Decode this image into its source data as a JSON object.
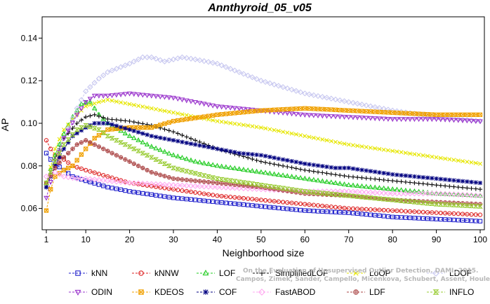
{
  "chart_data": {
    "type": "line",
    "title": "Annthyroid_05_v05",
    "xlabel": "Neighborhood size",
    "ylabel": "AP",
    "xlim": [
      1,
      100
    ],
    "ylim": [
      0.05,
      0.15
    ],
    "xticks": [
      1,
      10,
      20,
      30,
      40,
      50,
      60,
      70,
      80,
      90,
      100
    ],
    "yticks": [
      0.06,
      0.08,
      0.1,
      0.12,
      0.14
    ],
    "ytick_labels": [
      "0.06",
      "0.08",
      "0.10",
      "0.12",
      "0.14"
    ],
    "grid": false,
    "legend_position": "bottom",
    "watermark": [
      "On the Evaluation of Unsupervised Outlier Detection. DAMI, 2015.",
      "Campos, Zimek, Sander, Campello, Micenkova, Schubert, Assent, Houle"
    ],
    "series": [
      {
        "name": "kNN",
        "color": "#2222cc",
        "marker": "square",
        "points": [
          [
            1,
            0.086
          ],
          [
            2,
            0.083
          ],
          [
            3,
            0.081
          ],
          [
            5,
            0.078
          ],
          [
            7,
            0.075
          ],
          [
            10,
            0.073
          ],
          [
            15,
            0.07
          ],
          [
            20,
            0.068
          ],
          [
            30,
            0.065
          ],
          [
            40,
            0.063
          ],
          [
            50,
            0.061
          ],
          [
            60,
            0.059
          ],
          [
            70,
            0.058
          ],
          [
            80,
            0.056
          ],
          [
            90,
            0.055
          ],
          [
            100,
            0.054
          ]
        ]
      },
      {
        "name": "kNNW",
        "color": "#dd2222",
        "marker": "circle",
        "points": [
          [
            1,
            0.092
          ],
          [
            2,
            0.088
          ],
          [
            3,
            0.085
          ],
          [
            5,
            0.083
          ],
          [
            7,
            0.08
          ],
          [
            10,
            0.078
          ],
          [
            15,
            0.075
          ],
          [
            20,
            0.072
          ],
          [
            30,
            0.069
          ],
          [
            40,
            0.066
          ],
          [
            50,
            0.064
          ],
          [
            60,
            0.062
          ],
          [
            70,
            0.06
          ],
          [
            80,
            0.059
          ],
          [
            90,
            0.058
          ],
          [
            100,
            0.057
          ]
        ]
      },
      {
        "name": "LOF",
        "color": "#22cc22",
        "marker": "triangle",
        "points": [
          [
            1,
            0.072
          ],
          [
            3,
            0.085
          ],
          [
            5,
            0.095
          ],
          [
            7,
            0.103
          ],
          [
            9,
            0.109
          ],
          [
            11,
            0.11
          ],
          [
            13,
            0.104
          ],
          [
            15,
            0.1
          ],
          [
            20,
            0.094
          ],
          [
            25,
            0.089
          ],
          [
            30,
            0.085
          ],
          [
            35,
            0.082
          ],
          [
            40,
            0.08
          ],
          [
            50,
            0.077
          ],
          [
            60,
            0.074
          ],
          [
            70,
            0.071
          ],
          [
            80,
            0.069
          ],
          [
            90,
            0.067
          ],
          [
            100,
            0.066
          ]
        ]
      },
      {
        "name": "SimplifiedLOF",
        "color": "#111111",
        "marker": "plus",
        "points": [
          [
            1,
            0.07
          ],
          [
            3,
            0.083
          ],
          [
            5,
            0.093
          ],
          [
            8,
            0.1
          ],
          [
            10,
            0.103
          ],
          [
            12,
            0.104
          ],
          [
            15,
            0.102
          ],
          [
            20,
            0.101
          ],
          [
            25,
            0.099
          ],
          [
            30,
            0.096
          ],
          [
            35,
            0.092
          ],
          [
            40,
            0.088
          ],
          [
            45,
            0.085
          ],
          [
            50,
            0.082
          ],
          [
            60,
            0.078
          ],
          [
            70,
            0.075
          ],
          [
            80,
            0.073
          ],
          [
            90,
            0.071
          ],
          [
            100,
            0.069
          ]
        ]
      },
      {
        "name": "LoOP",
        "color": "#e6e600",
        "marker": "x",
        "points": [
          [
            1,
            0.071
          ],
          [
            3,
            0.088
          ],
          [
            5,
            0.097
          ],
          [
            8,
            0.104
          ],
          [
            10,
            0.108
          ],
          [
            13,
            0.11
          ],
          [
            15,
            0.111
          ],
          [
            20,
            0.109
          ],
          [
            25,
            0.107
          ],
          [
            30,
            0.105
          ],
          [
            40,
            0.101
          ],
          [
            50,
            0.098
          ],
          [
            60,
            0.094
          ],
          [
            70,
            0.09
          ],
          [
            80,
            0.087
          ],
          [
            90,
            0.084
          ],
          [
            100,
            0.081
          ]
        ]
      },
      {
        "name": "LDOF",
        "color": "#c8c8f0",
        "marker": "diamond",
        "points": [
          [
            1,
            0.07
          ],
          [
            3,
            0.082
          ],
          [
            5,
            0.093
          ],
          [
            8,
            0.107
          ],
          [
            10,
            0.115
          ],
          [
            13,
            0.121
          ],
          [
            15,
            0.124
          ],
          [
            20,
            0.128
          ],
          [
            23,
            0.131
          ],
          [
            25,
            0.131
          ],
          [
            28,
            0.129
          ],
          [
            32,
            0.131
          ],
          [
            35,
            0.13
          ],
          [
            40,
            0.128
          ],
          [
            45,
            0.124
          ],
          [
            50,
            0.12
          ],
          [
            60,
            0.114
          ],
          [
            70,
            0.11
          ],
          [
            80,
            0.106
          ],
          [
            90,
            0.103
          ],
          [
            100,
            0.101
          ]
        ]
      },
      {
        "name": "ODIN",
        "color": "#9933cc",
        "marker": "triangle-down",
        "points": [
          [
            1,
            0.065
          ],
          [
            3,
            0.08
          ],
          [
            5,
            0.093
          ],
          [
            8,
            0.104
          ],
          [
            10,
            0.11
          ],
          [
            12,
            0.113
          ],
          [
            15,
            0.113
          ],
          [
            20,
            0.114
          ],
          [
            25,
            0.113
          ],
          [
            30,
            0.112
          ],
          [
            35,
            0.11
          ],
          [
            40,
            0.108
          ],
          [
            50,
            0.106
          ],
          [
            60,
            0.104
          ],
          [
            70,
            0.103
          ],
          [
            80,
            0.102
          ],
          [
            90,
            0.102
          ],
          [
            100,
            0.101
          ]
        ]
      },
      {
        "name": "KDEOS",
        "color": "#f0a000",
        "marker": "boxed-x",
        "points": [
          [
            1,
            0.059
          ],
          [
            2,
            0.069
          ],
          [
            3,
            0.075
          ],
          [
            5,
            0.078
          ],
          [
            7,
            0.08
          ],
          [
            10,
            0.088
          ],
          [
            12,
            0.093
          ],
          [
            15,
            0.097
          ],
          [
            20,
            0.098
          ],
          [
            25,
            0.098
          ],
          [
            30,
            0.101
          ],
          [
            40,
            0.104
          ],
          [
            50,
            0.106
          ],
          [
            60,
            0.107
          ],
          [
            70,
            0.106
          ],
          [
            80,
            0.105
          ],
          [
            90,
            0.104
          ],
          [
            100,
            0.104
          ]
        ]
      },
      {
        "name": "COF",
        "color": "#000080",
        "marker": "star",
        "points": [
          [
            1,
            0.07
          ],
          [
            3,
            0.08
          ],
          [
            5,
            0.088
          ],
          [
            7,
            0.094
          ],
          [
            10,
            0.098
          ],
          [
            12,
            0.1
          ],
          [
            15,
            0.1
          ],
          [
            20,
            0.097
          ],
          [
            25,
            0.094
          ],
          [
            30,
            0.092
          ],
          [
            35,
            0.09
          ],
          [
            40,
            0.088
          ],
          [
            45,
            0.086
          ],
          [
            50,
            0.085
          ],
          [
            60,
            0.081
          ],
          [
            67,
            0.079
          ],
          [
            70,
            0.079
          ],
          [
            80,
            0.076
          ],
          [
            90,
            0.074
          ],
          [
            100,
            0.072
          ]
        ]
      },
      {
        "name": "FastABOD",
        "color": "#ffaaf0",
        "marker": "diamond",
        "points": [
          [
            1,
            0.075
          ],
          [
            3,
            0.077
          ],
          [
            5,
            0.075
          ],
          [
            8,
            0.074
          ],
          [
            10,
            0.074
          ],
          [
            15,
            0.073
          ],
          [
            20,
            0.072
          ],
          [
            30,
            0.071
          ],
          [
            40,
            0.07
          ],
          [
            50,
            0.069
          ],
          [
            60,
            0.068
          ],
          [
            70,
            0.068
          ],
          [
            80,
            0.067
          ],
          [
            90,
            0.067
          ],
          [
            100,
            0.066
          ]
        ]
      },
      {
        "name": "LDF",
        "color": "#aa4444",
        "marker": "circle-plus",
        "points": [
          [
            1,
            0.072
          ],
          [
            3,
            0.079
          ],
          [
            5,
            0.084
          ],
          [
            8,
            0.09
          ],
          [
            10,
            0.092
          ],
          [
            12,
            0.09
          ],
          [
            15,
            0.087
          ],
          [
            20,
            0.082
          ],
          [
            25,
            0.077
          ],
          [
            30,
            0.074
          ],
          [
            40,
            0.072
          ],
          [
            50,
            0.07
          ],
          [
            60,
            0.067
          ],
          [
            70,
            0.066
          ],
          [
            80,
            0.064
          ],
          [
            90,
            0.063
          ],
          [
            100,
            0.062
          ]
        ]
      },
      {
        "name": "INFLO",
        "color": "#99cc33",
        "marker": "hourglass",
        "points": [
          [
            1,
            0.072
          ],
          [
            3,
            0.082
          ],
          [
            5,
            0.09
          ],
          [
            8,
            0.097
          ],
          [
            10,
            0.099
          ],
          [
            13,
            0.097
          ],
          [
            15,
            0.094
          ],
          [
            20,
            0.089
          ],
          [
            25,
            0.084
          ],
          [
            30,
            0.079
          ],
          [
            40,
            0.074
          ],
          [
            50,
            0.071
          ],
          [
            60,
            0.068
          ],
          [
            70,
            0.066
          ],
          [
            80,
            0.064
          ],
          [
            90,
            0.062
          ],
          [
            100,
            0.061
          ]
        ]
      }
    ]
  }
}
